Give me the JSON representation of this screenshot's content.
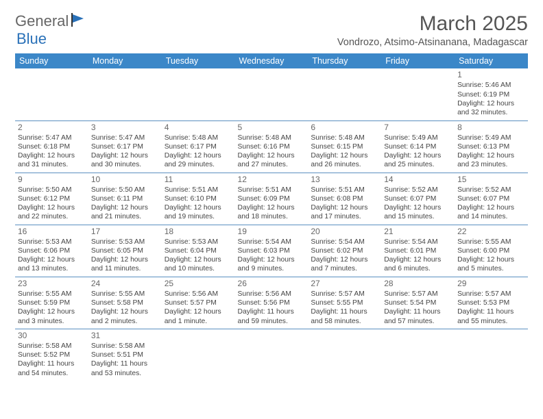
{
  "logo": {
    "text1": "General",
    "text2": "Blue"
  },
  "title": "March 2025",
  "location": "Vondrozo, Atsimo-Atsinanana, Madagascar",
  "colors": {
    "header_bg": "#3b87c8",
    "header_text": "#ffffff",
    "border": "#5a8fc0",
    "logo_blue": "#2a71b8"
  },
  "weekdays": [
    "Sunday",
    "Monday",
    "Tuesday",
    "Wednesday",
    "Thursday",
    "Friday",
    "Saturday"
  ],
  "weeks": [
    [
      null,
      null,
      null,
      null,
      null,
      null,
      {
        "n": "1",
        "sunrise": "5:46 AM",
        "sunset": "6:19 PM",
        "daylight": "12 hours and 32 minutes."
      }
    ],
    [
      {
        "n": "2",
        "sunrise": "5:47 AM",
        "sunset": "6:18 PM",
        "daylight": "12 hours and 31 minutes."
      },
      {
        "n": "3",
        "sunrise": "5:47 AM",
        "sunset": "6:17 PM",
        "daylight": "12 hours and 30 minutes."
      },
      {
        "n": "4",
        "sunrise": "5:48 AM",
        "sunset": "6:17 PM",
        "daylight": "12 hours and 29 minutes."
      },
      {
        "n": "5",
        "sunrise": "5:48 AM",
        "sunset": "6:16 PM",
        "daylight": "12 hours and 27 minutes."
      },
      {
        "n": "6",
        "sunrise": "5:48 AM",
        "sunset": "6:15 PM",
        "daylight": "12 hours and 26 minutes."
      },
      {
        "n": "7",
        "sunrise": "5:49 AM",
        "sunset": "6:14 PM",
        "daylight": "12 hours and 25 minutes."
      },
      {
        "n": "8",
        "sunrise": "5:49 AM",
        "sunset": "6:13 PM",
        "daylight": "12 hours and 23 minutes."
      }
    ],
    [
      {
        "n": "9",
        "sunrise": "5:50 AM",
        "sunset": "6:12 PM",
        "daylight": "12 hours and 22 minutes."
      },
      {
        "n": "10",
        "sunrise": "5:50 AM",
        "sunset": "6:11 PM",
        "daylight": "12 hours and 21 minutes."
      },
      {
        "n": "11",
        "sunrise": "5:51 AM",
        "sunset": "6:10 PM",
        "daylight": "12 hours and 19 minutes."
      },
      {
        "n": "12",
        "sunrise": "5:51 AM",
        "sunset": "6:09 PM",
        "daylight": "12 hours and 18 minutes."
      },
      {
        "n": "13",
        "sunrise": "5:51 AM",
        "sunset": "6:08 PM",
        "daylight": "12 hours and 17 minutes."
      },
      {
        "n": "14",
        "sunrise": "5:52 AM",
        "sunset": "6:07 PM",
        "daylight": "12 hours and 15 minutes."
      },
      {
        "n": "15",
        "sunrise": "5:52 AM",
        "sunset": "6:07 PM",
        "daylight": "12 hours and 14 minutes."
      }
    ],
    [
      {
        "n": "16",
        "sunrise": "5:53 AM",
        "sunset": "6:06 PM",
        "daylight": "12 hours and 13 minutes."
      },
      {
        "n": "17",
        "sunrise": "5:53 AM",
        "sunset": "6:05 PM",
        "daylight": "12 hours and 11 minutes."
      },
      {
        "n": "18",
        "sunrise": "5:53 AM",
        "sunset": "6:04 PM",
        "daylight": "12 hours and 10 minutes."
      },
      {
        "n": "19",
        "sunrise": "5:54 AM",
        "sunset": "6:03 PM",
        "daylight": "12 hours and 9 minutes."
      },
      {
        "n": "20",
        "sunrise": "5:54 AM",
        "sunset": "6:02 PM",
        "daylight": "12 hours and 7 minutes."
      },
      {
        "n": "21",
        "sunrise": "5:54 AM",
        "sunset": "6:01 PM",
        "daylight": "12 hours and 6 minutes."
      },
      {
        "n": "22",
        "sunrise": "5:55 AM",
        "sunset": "6:00 PM",
        "daylight": "12 hours and 5 minutes."
      }
    ],
    [
      {
        "n": "23",
        "sunrise": "5:55 AM",
        "sunset": "5:59 PM",
        "daylight": "12 hours and 3 minutes."
      },
      {
        "n": "24",
        "sunrise": "5:55 AM",
        "sunset": "5:58 PM",
        "daylight": "12 hours and 2 minutes."
      },
      {
        "n": "25",
        "sunrise": "5:56 AM",
        "sunset": "5:57 PM",
        "daylight": "12 hours and 1 minute."
      },
      {
        "n": "26",
        "sunrise": "5:56 AM",
        "sunset": "5:56 PM",
        "daylight": "11 hours and 59 minutes."
      },
      {
        "n": "27",
        "sunrise": "5:57 AM",
        "sunset": "5:55 PM",
        "daylight": "11 hours and 58 minutes."
      },
      {
        "n": "28",
        "sunrise": "5:57 AM",
        "sunset": "5:54 PM",
        "daylight": "11 hours and 57 minutes."
      },
      {
        "n": "29",
        "sunrise": "5:57 AM",
        "sunset": "5:53 PM",
        "daylight": "11 hours and 55 minutes."
      }
    ],
    [
      {
        "n": "30",
        "sunrise": "5:58 AM",
        "sunset": "5:52 PM",
        "daylight": "11 hours and 54 minutes."
      },
      {
        "n": "31",
        "sunrise": "5:58 AM",
        "sunset": "5:51 PM",
        "daylight": "11 hours and 53 minutes."
      },
      null,
      null,
      null,
      null,
      null
    ]
  ],
  "labels": {
    "sunrise": "Sunrise: ",
    "sunset": "Sunset: ",
    "daylight": "Daylight: "
  }
}
